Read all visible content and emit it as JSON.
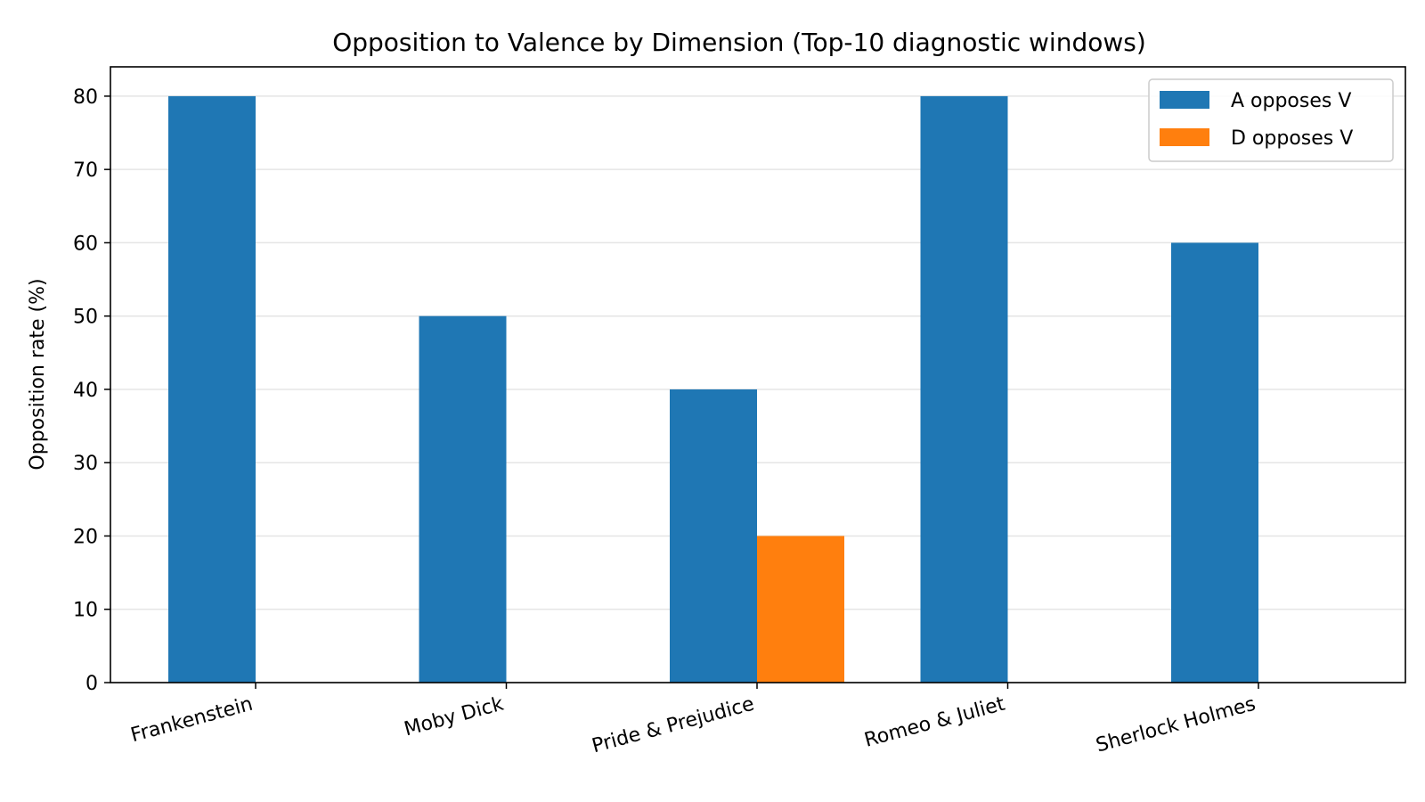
{
  "chart_data": {
    "type": "bar",
    "title": "Opposition to Valence by Dimension (Top-10 diagnostic windows)",
    "xlabel": "",
    "ylabel": "Opposition rate (%)",
    "ylim": [
      0,
      84
    ],
    "yticks": [
      0,
      10,
      20,
      30,
      40,
      50,
      60,
      70,
      80
    ],
    "grid": "y",
    "legend_position": "top-right",
    "categories": [
      "Frankenstein",
      "Moby Dick",
      "Pride & Prejudice",
      "Romeo & Juliet",
      "Sherlock Holmes"
    ],
    "series": [
      {
        "name": "A opposes V",
        "color": "#1f77b4",
        "values": [
          80,
          50,
          40,
          80,
          60
        ]
      },
      {
        "name": "D opposes V",
        "color": "#ff7f0e",
        "values": [
          0,
          0,
          20,
          0,
          0
        ]
      }
    ]
  }
}
